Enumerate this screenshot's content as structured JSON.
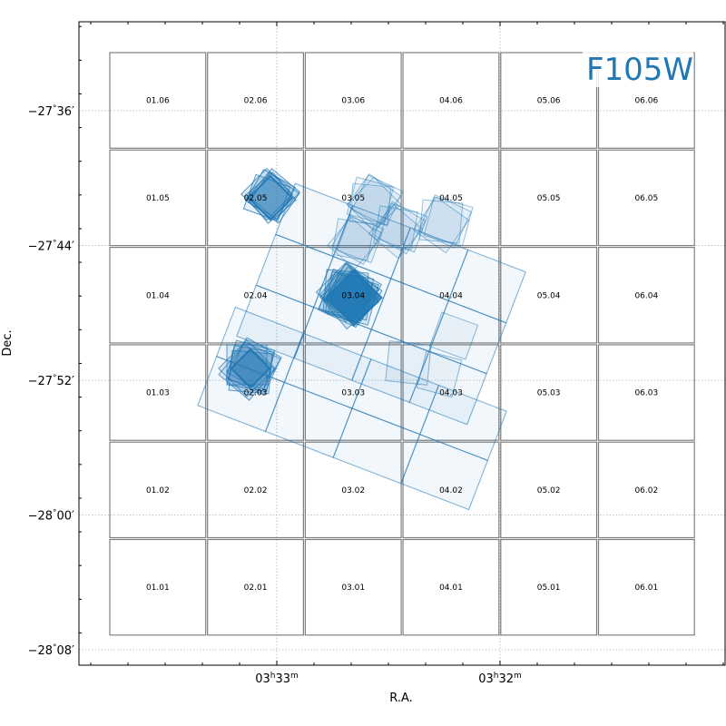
{
  "filter_label": "F105W",
  "colors": {
    "grid_outline": "#808080",
    "footprint": "#1f77b4",
    "filter_text": "#1f77b4",
    "gridline": "#b0b0b0"
  },
  "chart_data": {
    "type": "footprint-map",
    "xlabel": "R.A.",
    "ylabel": "Dec.",
    "x_ticks": [
      {
        "label": "03h33m",
        "main": "03",
        "h": "h",
        "mid": "33",
        "m": "m",
        "ra_sec": 0
      },
      {
        "label": "03h32m",
        "main": "03",
        "h": "h",
        "mid": "32",
        "m": "m",
        "ra_sec": 60
      }
    ],
    "y_ticks": [
      {
        "label": "−27°36′",
        "deg": "−27",
        "min": "36′",
        "dec_arcmin": -36
      },
      {
        "label": "−27°44′",
        "deg": "−27",
        "min": "44′",
        "dec_arcmin": -44
      },
      {
        "label": "−27°52′",
        "deg": "−27",
        "min": "52′",
        "dec_arcmin": -52
      },
      {
        "label": "−28°00′",
        "deg": "−28",
        "min": "00′",
        "dec_arcmin": -60
      },
      {
        "label": "−28°08′",
        "deg": "−28",
        "min": "08′",
        "dec_arcmin": -68
      }
    ],
    "grid": true,
    "columns": [
      "01",
      "02",
      "03",
      "04",
      "05",
      "06"
    ],
    "rows": [
      "06",
      "05",
      "04",
      "03",
      "02",
      "01"
    ],
    "cells": [
      "01.06",
      "02.06",
      "03.06",
      "04.06",
      "05.06",
      "06.06",
      "01.05",
      "02.05",
      "03.05",
      "04.05",
      "05.05",
      "06.05",
      "01.04",
      "02.04",
      "03.04",
      "04.04",
      "05.04",
      "06.04",
      "01.03",
      "02.03",
      "03.03",
      "04.03",
      "05.03",
      "06.03",
      "01.02",
      "02.02",
      "03.02",
      "04.02",
      "05.02",
      "06.02",
      "01.01",
      "02.01",
      "03.01",
      "04.01",
      "05.01",
      "06.01"
    ]
  }
}
